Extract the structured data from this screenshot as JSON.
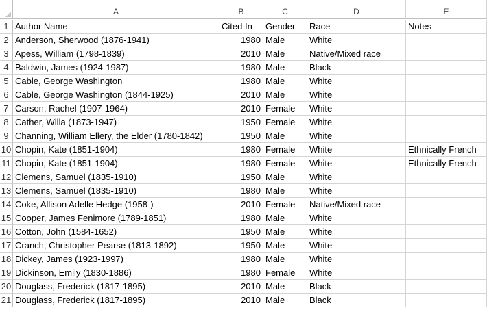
{
  "columns": [
    "A",
    "B",
    "C",
    "D",
    "E"
  ],
  "rows": [
    {
      "n": "1",
      "a": "Author Name",
      "b": "Cited In",
      "c": "Gender",
      "d": "Race",
      "e": "Notes"
    },
    {
      "n": "2",
      "a": "Anderson, Sherwood (1876-1941)",
      "b": "1980",
      "c": "Male",
      "d": "White",
      "e": ""
    },
    {
      "n": "3",
      "a": "Apess, William (1798-1839)",
      "b": "2010",
      "c": "Male",
      "d": "Native/Mixed race",
      "e": ""
    },
    {
      "n": "4",
      "a": "Baldwin, James (1924-1987)",
      "b": "1980",
      "c": "Male",
      "d": "Black",
      "e": ""
    },
    {
      "n": "5",
      "a": "Cable, George Washington",
      "b": "1980",
      "c": "Male",
      "d": "White",
      "e": ""
    },
    {
      "n": "6",
      "a": "Cable, George Washington (1844-1925)",
      "b": "2010",
      "c": "Male",
      "d": "White",
      "e": ""
    },
    {
      "n": "7",
      "a": "Carson, Rachel (1907-1964)",
      "b": "2010",
      "c": "Female",
      "d": "White",
      "e": ""
    },
    {
      "n": "8",
      "a": "Cather, Willa (1873-1947)",
      "b": "1950",
      "c": "Female",
      "d": "White",
      "e": ""
    },
    {
      "n": "9",
      "a": "Channing, William Ellery, the Elder (1780-1842)",
      "b": "1950",
      "c": "Male",
      "d": "White",
      "e": ""
    },
    {
      "n": "10",
      "a": "Chopin, Kate (1851-1904)",
      "b": "1980",
      "c": "Female",
      "d": "White",
      "e": "Ethnically French"
    },
    {
      "n": "11",
      "a": "Chopin, Kate (1851-1904)",
      "b": "1980",
      "c": "Female",
      "d": "White",
      "e": "Ethnically French"
    },
    {
      "n": "12",
      "a": "Clemens, Samuel (1835-1910)",
      "b": "1950",
      "c": "Male",
      "d": "White",
      "e": ""
    },
    {
      "n": "13",
      "a": "Clemens, Samuel (1835-1910)",
      "b": "1980",
      "c": "Male",
      "d": "White",
      "e": ""
    },
    {
      "n": "14",
      "a": "Coke, Allison Adelle Hedge (1958-)",
      "b": "2010",
      "c": "Female",
      "d": "Native/Mixed race",
      "e": ""
    },
    {
      "n": "15",
      "a": "Cooper, James Fenimore (1789-1851)",
      "b": "1980",
      "c": "Male",
      "d": "White",
      "e": ""
    },
    {
      "n": "16",
      "a": "Cotton, John (1584-1652)",
      "b": "1950",
      "c": "Male",
      "d": "White",
      "e": ""
    },
    {
      "n": "17",
      "a": "Cranch, Christopher Pearse (1813-1892)",
      "b": "1950",
      "c": "Male",
      "d": "White",
      "e": ""
    },
    {
      "n": "18",
      "a": "Dickey, James (1923-1997)",
      "b": "1980",
      "c": "Male",
      "d": "White",
      "e": ""
    },
    {
      "n": "19",
      "a": "Dickinson, Emily (1830-1886)",
      "b": "1980",
      "c": "Female",
      "d": "White",
      "e": ""
    },
    {
      "n": "20",
      "a": "Douglass, Frederick (1817-1895)",
      "b": "2010",
      "c": "Male",
      "d": "Black",
      "e": ""
    },
    {
      "n": "21",
      "a": "Douglass, Frederick (1817-1895)",
      "b": "2010",
      "c": "Male",
      "d": "Black",
      "e": ""
    }
  ]
}
